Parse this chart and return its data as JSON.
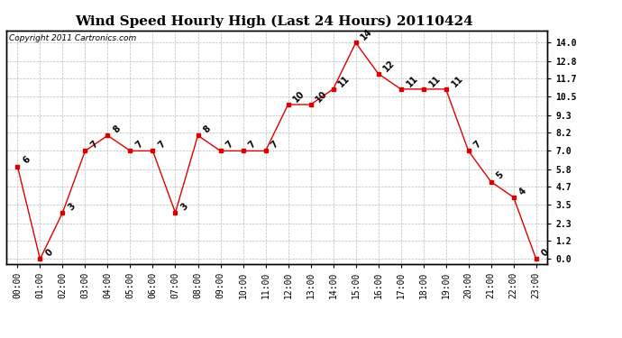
{
  "title": "Wind Speed Hourly High (Last 24 Hours) 20110424",
  "copyright": "Copyright 2011 Cartronics.com",
  "hours": [
    "00:00",
    "01:00",
    "02:00",
    "03:00",
    "04:00",
    "05:00",
    "06:00",
    "07:00",
    "08:00",
    "09:00",
    "10:00",
    "11:00",
    "12:00",
    "13:00",
    "14:00",
    "15:00",
    "16:00",
    "17:00",
    "18:00",
    "19:00",
    "20:00",
    "21:00",
    "22:00",
    "23:00"
  ],
  "values": [
    6,
    0,
    3,
    7,
    8,
    7,
    7,
    3,
    8,
    7,
    7,
    7,
    10,
    10,
    11,
    14,
    12,
    11,
    11,
    11,
    7,
    5,
    4,
    0
  ],
  "yticks": [
    0.0,
    1.2,
    2.3,
    3.5,
    4.7,
    5.8,
    7.0,
    8.2,
    9.3,
    10.5,
    11.7,
    12.8,
    14.0
  ],
  "line_color": "#dd0000",
  "marker_color": "#dd0000",
  "bg_color": "#ffffff",
  "grid_color": "#bbbbbb",
  "title_fontsize": 11,
  "copyright_fontsize": 6.5,
  "label_fontsize": 7,
  "tick_fontsize": 7,
  "ymin": -0.3,
  "ymax": 14.8
}
